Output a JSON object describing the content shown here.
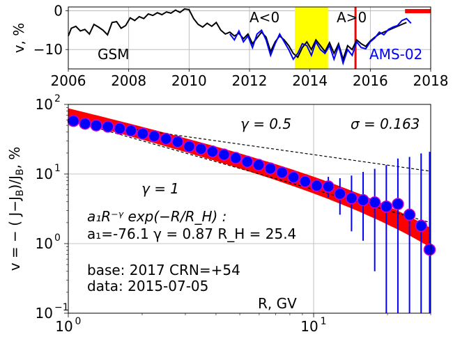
{
  "chart_data": [
    {
      "type": "line",
      "xlim": [
        2006,
        2018
      ],
      "ylim": [
        -15,
        1
      ],
      "xticks": [
        "2006",
        "2008",
        "2010",
        "2012",
        "2014",
        "2016",
        "2018"
      ],
      "yticks": [
        "0",
        "−10"
      ],
      "ylabel": "v, %",
      "grid": true,
      "annotations": {
        "gsm": "GSM",
        "ams": "AMS-02",
        "a_neg": "A<0",
        "a_pos": "A>0"
      },
      "reversal_band": [
        2013.5,
        2014.6
      ],
      "marker_date": 2015.51,
      "base_bar": [
        2017.15,
        2018
      ],
      "colors": {
        "gsm": "#000000",
        "ams": "#0000ff",
        "band": "#ffff00",
        "marker": "#ff0000",
        "base": "#ff0000"
      },
      "series": [
        {
          "name": "GSM",
          "x": [
            2006.0,
            2006.1,
            2006.25,
            2006.4,
            2006.55,
            2006.7,
            2006.85,
            2007.0,
            2007.15,
            2007.3,
            2007.45,
            2007.6,
            2007.75,
            2007.9,
            2008.05,
            2008.2,
            2008.35,
            2008.5,
            2008.65,
            2008.8,
            2008.95,
            2009.1,
            2009.25,
            2009.4,
            2009.55,
            2009.7,
            2009.85,
            2010.0,
            2010.15,
            2010.3,
            2010.45,
            2010.6,
            2010.75,
            2010.9,
            2011.05,
            2011.2,
            2011.35,
            2011.5,
            2011.65,
            2011.8,
            2011.95,
            2012.1,
            2012.25,
            2012.4,
            2012.55,
            2012.7,
            2012.85,
            2013.0,
            2013.15,
            2013.3,
            2013.45,
            2013.6,
            2013.75,
            2013.9,
            2014.05,
            2014.2,
            2014.35,
            2014.5,
            2014.65,
            2014.8,
            2014.95,
            2015.1,
            2015.25,
            2015.4,
            2015.55,
            2015.7,
            2015.85,
            2016.0,
            2016.15,
            2016.3,
            2016.45,
            2016.6,
            2016.75,
            2016.9,
            2017.05,
            2017.2
          ],
          "values": [
            -6.5,
            -4.5,
            -4.0,
            -5.2,
            -4.8,
            -6.0,
            -3.5,
            -4.2,
            -5.0,
            -6.2,
            -3.0,
            -2.8,
            -4.5,
            -3.8,
            -1.8,
            -2.5,
            -1.5,
            -2.0,
            -0.8,
            -1.2,
            -0.5,
            -1.0,
            -0.3,
            -0.6,
            0.2,
            -0.4,
            0.5,
            0.3,
            -2.0,
            -3.5,
            -4.2,
            -3.2,
            -4.0,
            -3.0,
            -5.0,
            -6.0,
            -5.5,
            -6.5,
            -5.8,
            -7.2,
            -6.0,
            -8.5,
            -7.0,
            -5.5,
            -6.8,
            -10.5,
            -8.0,
            -6.5,
            -7.5,
            -9.0,
            -11.0,
            -12.0,
            -9.5,
            -8.0,
            -10.0,
            -7.5,
            -9.0,
            -10.5,
            -8.2,
            -11.0,
            -8.5,
            -12.5,
            -9.0,
            -10.0,
            -7.5,
            -8.5,
            -9.2,
            -7.8,
            -6.8,
            -6.0,
            -5.5,
            -5.0,
            -4.5,
            -4.0,
            -3.5,
            -3.0
          ]
        },
        {
          "name": "AMS-02",
          "x": [
            2011.35,
            2011.5,
            2011.65,
            2011.8,
            2011.95,
            2012.1,
            2012.25,
            2012.4,
            2012.55,
            2012.7,
            2012.85,
            2013.0,
            2013.15,
            2013.3,
            2013.45,
            2013.6,
            2013.75,
            2013.9,
            2014.05,
            2014.2,
            2014.35,
            2014.5,
            2014.65,
            2014.8,
            2014.95,
            2015.1,
            2015.25,
            2015.4,
            2015.55,
            2015.7,
            2015.85,
            2016.0,
            2016.15,
            2016.3,
            2016.45,
            2016.6,
            2016.75,
            2016.9,
            2017.05,
            2017.2,
            2017.35
          ],
          "values": [
            -6.0,
            -7.5,
            -5.2,
            -8.0,
            -6.5,
            -9.5,
            -6.0,
            -5.0,
            -7.5,
            -11.5,
            -8.5,
            -6.0,
            -8.0,
            -10.0,
            -12.5,
            -11.0,
            -8.5,
            -9.0,
            -11.5,
            -8.0,
            -10.0,
            -11.0,
            -9.0,
            -12.5,
            -9.0,
            -13.5,
            -10.0,
            -11.5,
            -8.0,
            -9.5,
            -9.8,
            -8.0,
            -7.0,
            -5.5,
            -6.2,
            -4.8,
            -4.2,
            -3.8,
            -2.5,
            -2.0,
            -3.2
          ]
        }
      ]
    },
    {
      "type": "scatter",
      "xscale": "log",
      "yscale": "log",
      "xlim": [
        1,
        30
      ],
      "ylim": [
        0.1,
        100
      ],
      "xticks": [
        "10",
        "10"
      ],
      "xtick_sup": [
        "0",
        "1"
      ],
      "yticks": [
        "10",
        "10",
        "10",
        "10"
      ],
      "ytick_sup": [
        "−1",
        "0",
        "1",
        "2"
      ],
      "xlabel": "R, GV",
      "ylabel": "v = − ( J−J",
      "ylabel_sub": "B",
      "ylabel_mid": ")/J",
      "ylabel_end": ", %",
      "grid": true,
      "annotations": {
        "gamma_half": "γ = 0.5",
        "gamma_one": "γ = 1",
        "sigma": "σ = 0.163",
        "formula": "a₁R⁻ᵞ exp(−R/R_H) :",
        "params": "a₁=-76.1  γ = 0.87  R_H = 25.4",
        "base": "base: 2017   CRN=+54",
        "date": "data: 2015-07-05"
      },
      "fit": {
        "a1": 76.1,
        "gamma": 0.87,
        "RH": 25.4
      },
      "reference_lines": [
        {
          "gamma": 0.5,
          "value_at_R1": 60
        },
        {
          "gamma": 1.0,
          "value_at_R1": 60
        }
      ],
      "colors": {
        "points": "#0000ff",
        "point_edge": "#cc00cc",
        "fit_band": "#ff0000",
        "ref": "#000000",
        "errorbar": "#0000ff"
      },
      "series": [
        {
          "name": "data",
          "x": [
            1.05,
            1.17,
            1.3,
            1.45,
            1.62,
            1.8,
            2.01,
            2.24,
            2.5,
            2.79,
            3.11,
            3.47,
            3.87,
            4.31,
            4.81,
            5.36,
            5.97,
            6.66,
            7.43,
            8.28,
            9.23,
            10.29,
            11.48,
            12.8,
            14.27,
            15.91,
            17.74,
            19.78,
            22.05,
            24.59,
            27.42,
            29.7
          ],
          "values": [
            58,
            53,
            50,
            48,
            45,
            42,
            38,
            35,
            32,
            29,
            25,
            23,
            21,
            19,
            17,
            15,
            13.5,
            12,
            10.5,
            9.0,
            7.8,
            6.8,
            6.6,
            5.2,
            4.5,
            4.2,
            3.9,
            3.4,
            3.7,
            2.6,
            1.8,
            0.82
          ],
          "err_low": [
            0,
            0,
            0,
            0,
            0,
            0,
            0,
            0,
            0,
            0,
            0,
            0,
            0,
            0,
            0,
            0,
            0,
            0,
            0,
            0,
            0,
            1.2,
            2.0,
            2.6,
            3.0,
            3.1,
            3.5,
            3.3,
            3.68,
            2.6,
            1.8,
            0.82
          ],
          "err_high": [
            0,
            0,
            0,
            0,
            0,
            0,
            0,
            0,
            0,
            0,
            0,
            0,
            0,
            0,
            0,
            0,
            0,
            0,
            0,
            0,
            0,
            1.3,
            2.5,
            3.5,
            5.0,
            6.5,
            8.0,
            10.0,
            13.0,
            15.0,
            18.0,
            20.0
          ]
        }
      ]
    }
  ]
}
